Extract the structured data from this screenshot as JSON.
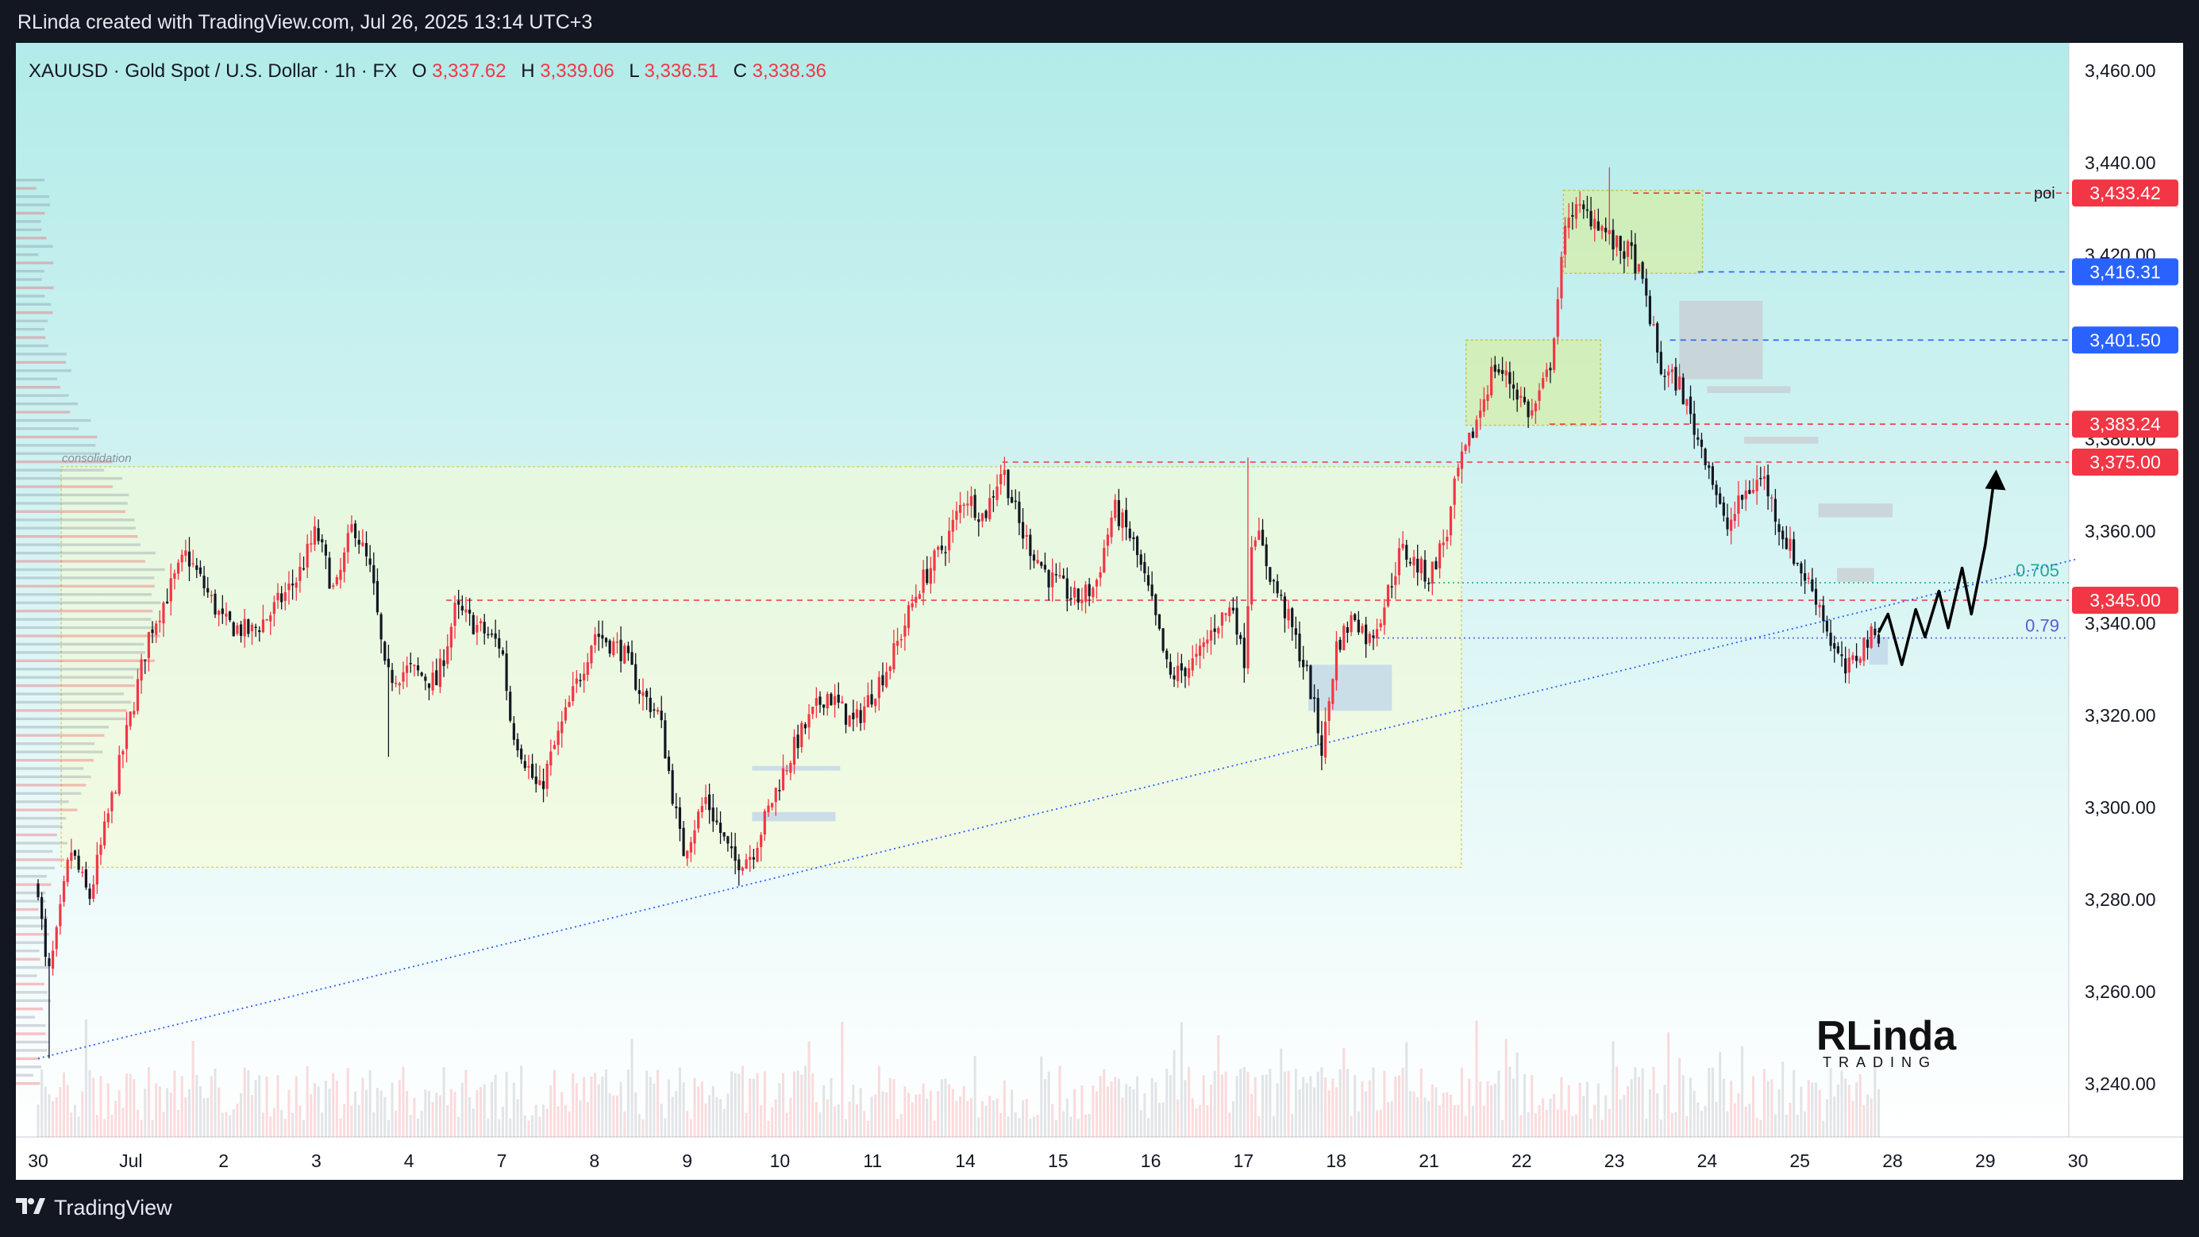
{
  "header": {
    "caption": "RLinda created with TradingView.com, Jul 26, 2025 13:14 UTC+3"
  },
  "footer": {
    "brand": "TradingView"
  },
  "colors": {
    "up": "#f23645",
    "down": "#131722",
    "blue_label": "#2962ff",
    "red_label": "#f23645",
    "teal": "#22ab94",
    "purple": "#5b5bd6",
    "bg_top": "#b2ebe9",
    "bg_bottom": "#ffffff"
  },
  "chart_data": {
    "type": "candlestick",
    "symbol_line": {
      "symbol": "XAUUSD · Gold Spot / U.S. Dollar · 1h · FX",
      "o_label": "O",
      "o_value": "3,337.62",
      "h_label": "H",
      "h_value": "3,339.06",
      "l_label": "L",
      "l_value": "3,336.51",
      "c_label": "C",
      "c_value": "3,338.36"
    },
    "ylim": [
      3230,
      3470
    ],
    "y_ticks": [
      {
        "value": 3460,
        "label": "3,460.00"
      },
      {
        "value": 3440,
        "label": "3,440.00"
      },
      {
        "value": 3420,
        "label": "3,420.00"
      },
      {
        "value": 3380,
        "label": "3,380.00"
      },
      {
        "value": 3360,
        "label": "3,360.00"
      },
      {
        "value": 3340,
        "label": "3,340.00"
      },
      {
        "value": 3320,
        "label": "3,320.00"
      },
      {
        "value": 3300,
        "label": "3,300.00"
      },
      {
        "value": 3280,
        "label": "3,280.00"
      },
      {
        "value": 3260,
        "label": "3,260.00"
      },
      {
        "value": 3240,
        "label": "3,240.00"
      }
    ],
    "x_ticks": [
      {
        "pos": 0,
        "label": "30"
      },
      {
        "pos": 1,
        "label": "Jul"
      },
      {
        "pos": 2,
        "label": "2"
      },
      {
        "pos": 3,
        "label": "3"
      },
      {
        "pos": 4,
        "label": "4"
      },
      {
        "pos": 5,
        "label": "7"
      },
      {
        "pos": 6,
        "label": "8"
      },
      {
        "pos": 7,
        "label": "9"
      },
      {
        "pos": 8,
        "label": "10"
      },
      {
        "pos": 9,
        "label": "11"
      },
      {
        "pos": 10,
        "label": "14"
      },
      {
        "pos": 11,
        "label": "15"
      },
      {
        "pos": 12,
        "label": "16"
      },
      {
        "pos": 13,
        "label": "17"
      },
      {
        "pos": 14,
        "label": "18"
      },
      {
        "pos": 15,
        "label": "21"
      },
      {
        "pos": 16,
        "label": "22"
      },
      {
        "pos": 17,
        "label": "23"
      },
      {
        "pos": 18,
        "label": "24"
      },
      {
        "pos": 19,
        "label": "25"
      },
      {
        "pos": 20,
        "label": "28"
      },
      {
        "pos": 21,
        "label": "29"
      },
      {
        "pos": 22,
        "label": "30"
      }
    ],
    "price_levels": [
      {
        "value": 3433.42,
        "label": "3,433.42",
        "color": "#f23645",
        "style": "dashed",
        "text": "poi",
        "x_start": 17.2
      },
      {
        "value": 3416.31,
        "label": "3,416.31",
        "color": "#2962ff",
        "style": "dashed",
        "text": "",
        "x_start": 17.9
      },
      {
        "value": 3401.5,
        "label": "3,401.50",
        "color": "#2962ff",
        "style": "dashed",
        "text": "",
        "x_start": 17.6
      },
      {
        "value": 3383.24,
        "label": "3,383.24",
        "color": "#f23645",
        "style": "dashed",
        "text": "",
        "x_start": 16.3
      },
      {
        "value": 3375.0,
        "label": "3,375.00",
        "color": "#f23645",
        "style": "dashed",
        "text": "",
        "x_start": 10.4
      },
      {
        "value": 3345.0,
        "label": "3,345.00",
        "color": "#f23645",
        "style": "dashed",
        "text": "",
        "x_start": 4.4
      }
    ],
    "fib_levels": [
      {
        "value": 3348.8,
        "label": "0.705",
        "color": "#22ab94",
        "x_start": 15.0
      },
      {
        "value": 3336.8,
        "label": "0.79",
        "color": "#5b5bd6",
        "x_start": 14.4
      }
    ],
    "annotations": {
      "consolidation_label": "consolidation",
      "watermark_main": "RLinda",
      "watermark_sub": "TRADING"
    },
    "zones": [
      {
        "x0": 0.25,
        "x1": 15.35,
        "y0": 3287.0,
        "y1": 3374.0,
        "kind": "consolidation"
      },
      {
        "x0": 15.4,
        "x1": 16.85,
        "y0": 3383.0,
        "y1": 3401.5,
        "kind": "green"
      },
      {
        "x0": 16.45,
        "x1": 17.95,
        "y0": 3416.0,
        "y1": 3434.0,
        "kind": "green"
      },
      {
        "x0": 17.7,
        "x1": 18.6,
        "y0": 3393.0,
        "y1": 3410.0,
        "kind": "grey"
      },
      {
        "x0": 18.0,
        "x1": 18.9,
        "y0": 3390.0,
        "y1": 3391.5,
        "kind": "grey"
      },
      {
        "x0": 18.4,
        "x1": 19.2,
        "y0": 3379.0,
        "y1": 3380.5,
        "kind": "grey"
      },
      {
        "x0": 19.2,
        "x1": 20.0,
        "y0": 3363.0,
        "y1": 3366.0,
        "kind": "grey"
      },
      {
        "x0": 19.4,
        "x1": 19.8,
        "y0": 3349.0,
        "y1": 3352.0,
        "kind": "grey"
      },
      {
        "x0": 13.7,
        "x1": 14.6,
        "y0": 3321.0,
        "y1": 3331.0,
        "kind": "blue"
      },
      {
        "x0": 19.75,
        "x1": 19.95,
        "y0": 3331.0,
        "y1": 3337.0,
        "kind": "blue"
      },
      {
        "x0": 7.7,
        "x1": 8.6,
        "y0": 3297.0,
        "y1": 3299.0,
        "kind": "blue"
      },
      {
        "x0": 7.7,
        "x1": 8.65,
        "y0": 3308.0,
        "y1": 3309.0,
        "kind": "blue"
      }
    ],
    "trendline": {
      "x0": 0.0,
      "y0": 3245.5,
      "x1": 22.0,
      "y1": 3354.0
    },
    "forecast_path": [
      [
        19.85,
        3338
      ],
      [
        19.95,
        3342
      ],
      [
        20.1,
        3331
      ],
      [
        20.25,
        3343
      ],
      [
        20.35,
        3337
      ],
      [
        20.5,
        3347
      ],
      [
        20.6,
        3339
      ],
      [
        20.75,
        3352
      ],
      [
        20.85,
        3342
      ],
      [
        21.0,
        3357
      ],
      [
        21.1,
        3372
      ]
    ],
    "anchors": [
      [
        0.0,
        3283
      ],
      [
        0.1,
        3262
      ],
      [
        0.2,
        3272
      ],
      [
        0.35,
        3291
      ],
      [
        0.55,
        3280
      ],
      [
        1.0,
        3320
      ],
      [
        1.2,
        3338
      ],
      [
        1.6,
        3355
      ],
      [
        2.0,
        3340
      ],
      [
        2.3,
        3338
      ],
      [
        2.5,
        3342
      ],
      [
        2.8,
        3350
      ],
      [
        3.0,
        3360
      ],
      [
        3.2,
        3346
      ],
      [
        3.4,
        3362
      ],
      [
        3.6,
        3350
      ],
      [
        3.75,
        3328
      ],
      [
        4.0,
        3330
      ],
      [
        4.3,
        3327
      ],
      [
        4.5,
        3343
      ],
      [
        5.0,
        3335
      ],
      [
        5.1,
        3318
      ],
      [
        5.4,
        3303
      ],
      [
        5.6,
        3315
      ],
      [
        5.9,
        3332
      ],
      [
        6.0,
        3338
      ],
      [
        6.3,
        3334
      ],
      [
        6.5,
        3325
      ],
      [
        6.7,
        3320
      ],
      [
        6.95,
        3290
      ],
      [
        7.2,
        3302
      ],
      [
        7.5,
        3288
      ],
      [
        7.7,
        3290
      ],
      [
        8.0,
        3306
      ],
      [
        8.2,
        3315
      ],
      [
        8.5,
        3325
      ],
      [
        8.8,
        3318
      ],
      [
        9.2,
        3332
      ],
      [
        9.5,
        3348
      ],
      [
        9.8,
        3358
      ],
      [
        10.0,
        3368
      ],
      [
        10.2,
        3363
      ],
      [
        10.4,
        3374
      ],
      [
        10.6,
        3360
      ],
      [
        10.9,
        3350
      ],
      [
        11.2,
        3345
      ],
      [
        11.4,
        3348
      ],
      [
        11.6,
        3365
      ],
      [
        11.8,
        3358
      ],
      [
        12.0,
        3345
      ],
      [
        12.2,
        3328
      ],
      [
        12.5,
        3332
      ],
      [
        12.7,
        3340
      ],
      [
        12.9,
        3344
      ],
      [
        13.0,
        3330
      ],
      [
        13.1,
        3362
      ],
      [
        13.3,
        3350
      ],
      [
        13.5,
        3340
      ],
      [
        13.7,
        3328
      ],
      [
        13.85,
        3312
      ],
      [
        14.0,
        3335
      ],
      [
        14.2,
        3342
      ],
      [
        14.35,
        3336
      ],
      [
        14.5,
        3343
      ],
      [
        14.7,
        3356
      ],
      [
        15.0,
        3350
      ],
      [
        15.2,
        3360
      ],
      [
        15.3,
        3372
      ],
      [
        15.45,
        3380
      ],
      [
        15.7,
        3396
      ],
      [
        15.9,
        3392
      ],
      [
        16.1,
        3385
      ],
      [
        16.3,
        3395
      ],
      [
        16.5,
        3430
      ],
      [
        16.8,
        3428
      ],
      [
        17.0,
        3422
      ],
      [
        17.2,
        3420
      ],
      [
        17.35,
        3410
      ],
      [
        17.5,
        3395
      ],
      [
        17.7,
        3392
      ],
      [
        17.9,
        3380
      ],
      [
        18.0,
        3376
      ],
      [
        18.2,
        3360
      ],
      [
        18.4,
        3368
      ],
      [
        18.6,
        3372
      ],
      [
        18.8,
        3360
      ],
      [
        19.0,
        3352
      ],
      [
        19.2,
        3345
      ],
      [
        19.35,
        3335
      ],
      [
        19.5,
        3329
      ],
      [
        19.7,
        3336
      ],
      [
        19.85,
        3338
      ]
    ]
  }
}
